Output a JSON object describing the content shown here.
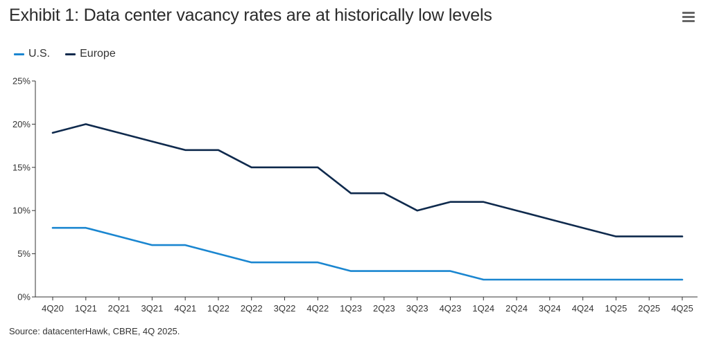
{
  "header": {
    "title": "Exhibit 1: Data center vacancy rates are at historically low levels",
    "menu_icon": "hamburger-menu-icon"
  },
  "colors": {
    "us": "#1a86d0",
    "europe": "#0f2a4d",
    "axis": "#333333"
  },
  "footer": {
    "source": "Source: datacenterHawk, CBRE, 4Q 2025."
  },
  "chart_data": {
    "type": "line",
    "title": "Exhibit 1: Data center vacancy rates are at historically low levels",
    "categories": [
      "4Q20",
      "1Q21",
      "2Q21",
      "3Q21",
      "4Q21",
      "1Q22",
      "2Q22",
      "3Q22",
      "4Q22",
      "1Q23",
      "2Q23",
      "3Q23",
      "4Q23",
      "1Q24",
      "2Q24",
      "3Q24",
      "4Q24",
      "1Q25",
      "2Q25",
      "4Q25"
    ],
    "series": [
      {
        "name": "U.S.",
        "values": [
          8,
          8,
          7,
          6,
          6,
          5,
          4,
          4,
          4,
          3,
          3,
          3,
          3,
          2,
          2,
          2,
          2,
          2,
          2,
          2
        ]
      },
      {
        "name": "Europe",
        "values": [
          19,
          20,
          19,
          18,
          17,
          17,
          15,
          15,
          15,
          12,
          12,
          10,
          11,
          11,
          10,
          9,
          8,
          7,
          7,
          7
        ]
      }
    ],
    "y_ticks": [
      "0%",
      "5%",
      "10%",
      "15%",
      "20%",
      "25%"
    ],
    "ylim": [
      0,
      25
    ],
    "legend_position": "top-left",
    "grid": false
  }
}
